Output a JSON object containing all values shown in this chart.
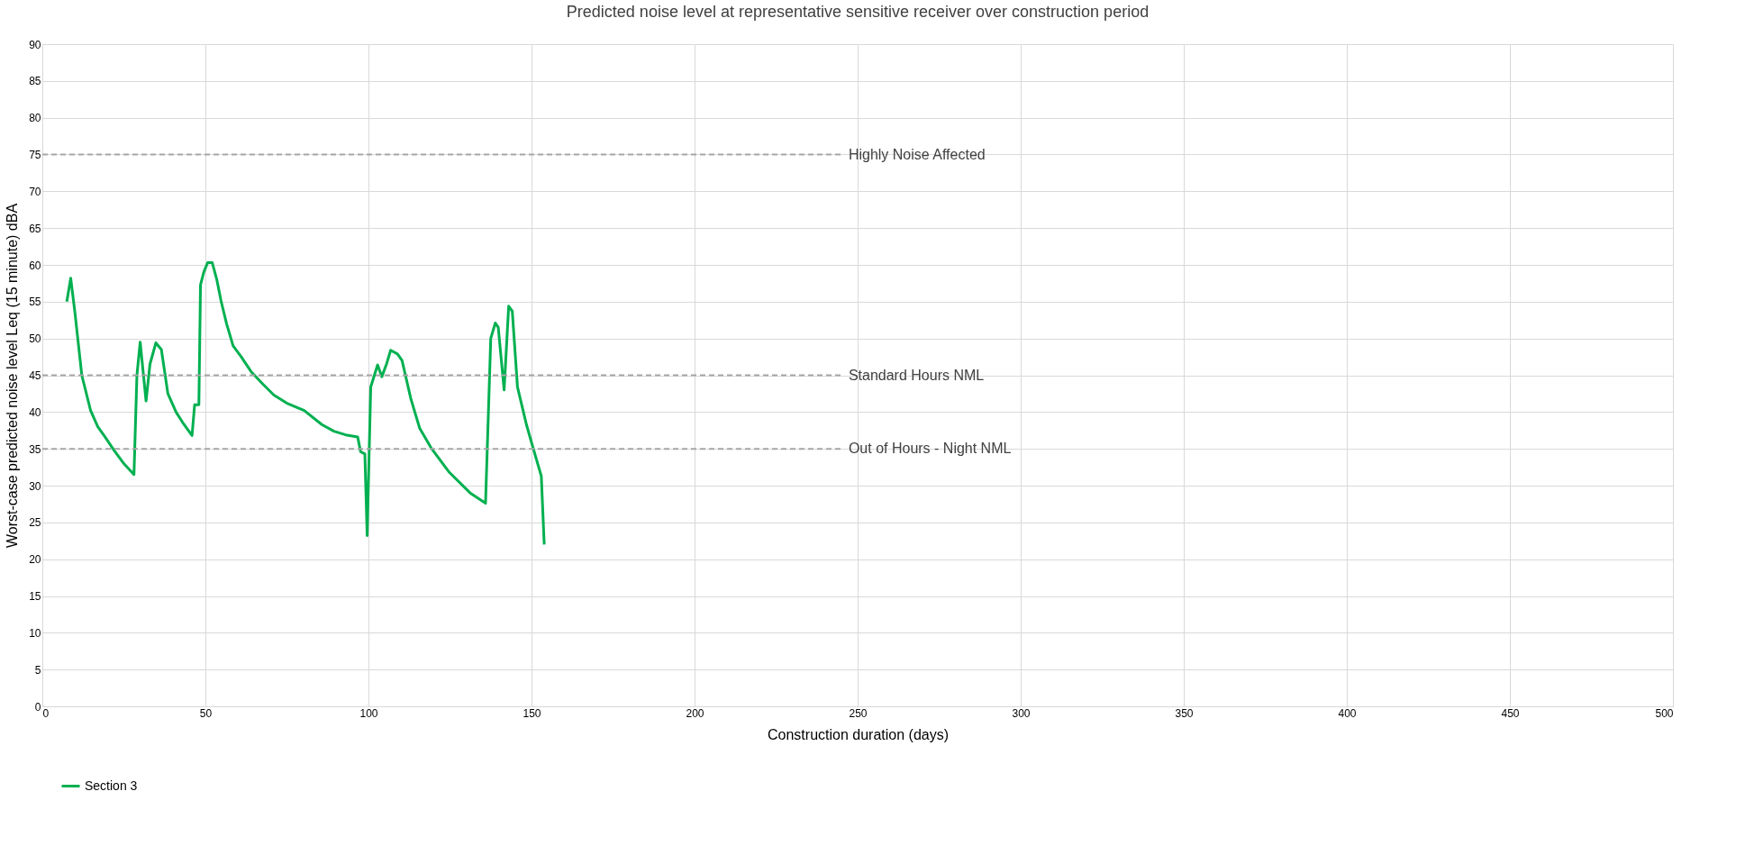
{
  "chart_data": {
    "type": "line",
    "title": "Predicted noise level at representative sensitive receiver over construction period",
    "xlabel": "Construction duration (days)",
    "ylabel": "Worst-case predicted noise level Leq (15 minute) dBA",
    "x": [
      7.5,
      8.7,
      10,
      12.1,
      14.8,
      17,
      19.4,
      22,
      24.8,
      28.1,
      29,
      30,
      31.8,
      33,
      34.8,
      36.5,
      38.5,
      41,
      43,
      45.9,
      46.7,
      48,
      48.5,
      49.5,
      50.7,
      52.1,
      53.5,
      54.8,
      56.5,
      58.5,
      61,
      64,
      67.6,
      71,
      75,
      80.3,
      85.7,
      89.4,
      93,
      96.7,
      97.6,
      98.9,
      99.6,
      100.7,
      102.8,
      104.1,
      105.6,
      106.8,
      108.9,
      110.3,
      113,
      115.7,
      119.4,
      124.8,
      131.2,
      135.9,
      137.5,
      138.9,
      139.8,
      141.6,
      143,
      144.1,
      145.7,
      148.5,
      150.3,
      153,
      153.9
    ],
    "series": [
      {
        "name": "Section 3",
        "color": "#00b050",
        "values": [
          55,
          58.2,
          53.5,
          45,
          40.2,
          38,
          36.5,
          34.8,
          33.1,
          31.5,
          45,
          49.5,
          41.5,
          46.5,
          49.4,
          48.5,
          42.5,
          40,
          38.6,
          36.8,
          41,
          41,
          57.3,
          59,
          60.3,
          60.3,
          58,
          55.1,
          52,
          49,
          47.5,
          45.5,
          43.8,
          42.3,
          41.2,
          40.2,
          38.3,
          37.4,
          36.9,
          36.6,
          34.6,
          34.3,
          23.2,
          43.4,
          46.4,
          44.8,
          46.6,
          48.4,
          47.9,
          47,
          41.8,
          37.8,
          35,
          31.8,
          29,
          27.6,
          50,
          52.1,
          51.5,
          43,
          54.4,
          53.7,
          43.4,
          38.2,
          35.4,
          31.3,
          22
        ]
      }
    ],
    "xlim": [
      0,
      500
    ],
    "xticks": [
      0,
      50,
      100,
      150,
      200,
      250,
      300,
      350,
      400,
      450,
      500
    ],
    "ylim": [
      0,
      90
    ],
    "yticks": [
      0,
      5,
      10,
      15,
      20,
      25,
      30,
      35,
      40,
      45,
      50,
      55,
      60,
      65,
      70,
      75,
      80,
      85,
      90
    ],
    "grid": true,
    "legend": "bottom",
    "marker": "none",
    "line_style": "solid",
    "ref_lines": [
      {
        "axis": "y",
        "value": 75,
        "label": "Highly Noise Affected",
        "color": "#a6a6a6",
        "line_style": "dashed"
      },
      {
        "axis": "y",
        "value": 45,
        "label": "Standard Hours NML",
        "color": "#a6a6a6",
        "line_style": "dashed"
      },
      {
        "axis": "y",
        "value": 35,
        "label": "Out of Hours - Night NML",
        "color": "#a6a6a6",
        "line_style": "dashed"
      }
    ]
  }
}
